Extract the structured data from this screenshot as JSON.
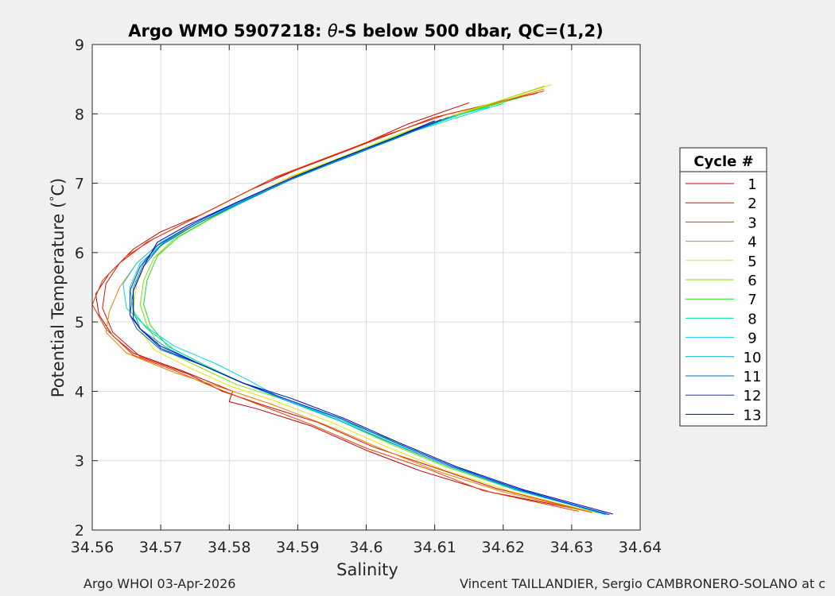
{
  "chart_data": {
    "type": "line",
    "title": "Argo WMO 5907218: θ-S below 500 dbar,  QC=(1,2)",
    "title_parts": [
      "Argo WMO 5907218: ",
      "θ",
      "-S below 500 dbar,  QC=(1,2)"
    ],
    "xlabel": "Salinity",
    "ylabel": "Potential Temperature (°C)",
    "ylabel_parts": [
      "Potential Temperature (",
      "°",
      "C)"
    ],
    "xlim": [
      34.56,
      34.64
    ],
    "ylim": [
      2,
      9
    ],
    "xticks": [
      34.56,
      34.57,
      34.58,
      34.59,
      34.6,
      34.61,
      34.62,
      34.63,
      34.64
    ],
    "xtick_labels": [
      "34.56",
      "34.57",
      "34.58",
      "34.59",
      "34.6",
      "34.61",
      "34.62",
      "34.63",
      "34.64"
    ],
    "yticks": [
      2,
      3,
      4,
      5,
      6,
      7,
      8,
      9
    ],
    "ytick_labels": [
      "2",
      "3",
      "4",
      "5",
      "6",
      "7",
      "8",
      "9"
    ],
    "grid": true,
    "legend": {
      "title": "Cycle #",
      "placement": "outside-right"
    },
    "series": [
      {
        "name": "1",
        "color": "#c00000",
        "values": [
          [
            34.633,
            2.26
          ],
          [
            34.618,
            2.55
          ],
          [
            34.608,
            2.85
          ],
          [
            34.6,
            3.15
          ],
          [
            34.592,
            3.5
          ],
          [
            34.584,
            3.75
          ],
          [
            34.58,
            3.85
          ],
          [
            34.5805,
            4.0
          ],
          [
            34.573,
            4.3
          ],
          [
            34.566,
            4.55
          ],
          [
            34.563,
            4.8
          ],
          [
            34.561,
            5.1
          ],
          [
            34.5605,
            5.4
          ],
          [
            34.5625,
            5.7
          ],
          [
            34.566,
            6.05
          ],
          [
            34.57,
            6.3
          ],
          [
            34.576,
            6.55
          ],
          [
            34.583,
            6.9
          ],
          [
            34.59,
            7.2
          ],
          [
            34.598,
            7.5
          ],
          [
            34.606,
            7.85
          ],
          [
            34.615,
            8.16
          ]
        ]
      },
      {
        "name": "2",
        "color": "#d61000",
        "values": [
          [
            34.632,
            2.28
          ],
          [
            34.619,
            2.6
          ],
          [
            34.61,
            2.9
          ],
          [
            34.601,
            3.2
          ],
          [
            34.593,
            3.55
          ],
          [
            34.585,
            3.8
          ],
          [
            34.579,
            4.0
          ],
          [
            34.574,
            4.25
          ],
          [
            34.567,
            4.5
          ],
          [
            34.563,
            4.85
          ],
          [
            34.5615,
            5.2
          ],
          [
            34.562,
            5.55
          ],
          [
            34.564,
            5.85
          ],
          [
            34.568,
            6.15
          ],
          [
            34.573,
            6.4
          ],
          [
            34.579,
            6.7
          ],
          [
            34.586,
            7.05
          ],
          [
            34.594,
            7.35
          ],
          [
            34.602,
            7.65
          ],
          [
            34.61,
            7.95
          ],
          [
            34.625,
            8.3
          ]
        ]
      },
      {
        "name": "3",
        "color": "#e63c00",
        "values": [
          [
            34.631,
            2.27
          ],
          [
            34.617,
            2.57
          ],
          [
            34.609,
            2.88
          ],
          [
            34.6,
            3.18
          ],
          [
            34.592,
            3.52
          ],
          [
            34.584,
            3.82
          ],
          [
            34.578,
            4.05
          ],
          [
            34.572,
            4.3
          ],
          [
            34.566,
            4.52
          ],
          [
            34.562,
            4.9
          ],
          [
            34.56,
            5.25
          ],
          [
            34.5615,
            5.6
          ],
          [
            34.565,
            5.95
          ],
          [
            34.569,
            6.2
          ],
          [
            34.574,
            6.45
          ],
          [
            34.58,
            6.75
          ],
          [
            34.587,
            7.1
          ],
          [
            34.595,
            7.4
          ],
          [
            34.603,
            7.7
          ],
          [
            34.612,
            8.0
          ],
          [
            34.626,
            8.33
          ]
        ]
      },
      {
        "name": "4",
        "color": "#f08000",
        "values": [
          [
            34.633,
            2.25
          ],
          [
            34.62,
            2.55
          ],
          [
            34.61,
            2.86
          ],
          [
            34.602,
            3.18
          ],
          [
            34.594,
            3.52
          ],
          [
            34.586,
            3.82
          ],
          [
            34.579,
            4.05
          ],
          [
            34.572,
            4.27
          ],
          [
            34.565,
            4.55
          ],
          [
            34.562,
            4.85
          ],
          [
            34.5625,
            5.15
          ],
          [
            34.564,
            5.5
          ],
          [
            34.5665,
            5.85
          ],
          [
            34.57,
            6.15
          ],
          [
            34.575,
            6.4
          ],
          [
            34.581,
            6.7
          ],
          [
            34.588,
            7.05
          ],
          [
            34.596,
            7.35
          ],
          [
            34.604,
            7.65
          ],
          [
            34.613,
            7.98
          ],
          [
            34.626,
            8.36
          ]
        ]
      },
      {
        "name": "5",
        "color": "#e6e600",
        "values": [
          [
            34.634,
            2.24
          ],
          [
            34.621,
            2.56
          ],
          [
            34.611,
            2.88
          ],
          [
            34.603,
            3.2
          ],
          [
            34.595,
            3.55
          ],
          [
            34.587,
            3.85
          ],
          [
            34.58,
            4.08
          ],
          [
            34.574,
            4.35
          ],
          [
            34.569,
            4.6
          ],
          [
            34.567,
            4.9
          ],
          [
            34.566,
            5.2
          ],
          [
            34.5665,
            5.55
          ],
          [
            34.568,
            5.9
          ],
          [
            34.571,
            6.18
          ],
          [
            34.576,
            6.45
          ],
          [
            34.582,
            6.75
          ],
          [
            34.589,
            7.1
          ],
          [
            34.597,
            7.4
          ],
          [
            34.605,
            7.72
          ],
          [
            34.614,
            8.02
          ],
          [
            34.627,
            8.42
          ]
        ]
      },
      {
        "name": "6",
        "color": "#80e000",
        "values": [
          [
            34.635,
            2.23
          ],
          [
            34.622,
            2.57
          ],
          [
            34.612,
            2.9
          ],
          [
            34.604,
            3.22
          ],
          [
            34.596,
            3.58
          ],
          [
            34.588,
            3.88
          ],
          [
            34.581,
            4.1
          ],
          [
            34.575,
            4.38
          ],
          [
            34.57,
            4.62
          ],
          [
            34.568,
            4.95
          ],
          [
            34.567,
            5.25
          ],
          [
            34.5675,
            5.6
          ],
          [
            34.569,
            5.92
          ],
          [
            34.572,
            6.2
          ],
          [
            34.577,
            6.48
          ],
          [
            34.583,
            6.78
          ],
          [
            34.59,
            7.12
          ],
          [
            34.598,
            7.42
          ],
          [
            34.606,
            7.74
          ],
          [
            34.615,
            8.04
          ],
          [
            34.626,
            8.4
          ]
        ]
      },
      {
        "name": "7",
        "color": "#20e020",
        "values": [
          [
            34.635,
            2.24
          ],
          [
            34.622,
            2.58
          ],
          [
            34.613,
            2.92
          ],
          [
            34.605,
            3.25
          ],
          [
            34.596,
            3.6
          ],
          [
            34.588,
            3.9
          ],
          [
            34.582,
            4.12
          ],
          [
            34.576,
            4.4
          ],
          [
            34.571,
            4.65
          ],
          [
            34.5685,
            4.95
          ],
          [
            34.5675,
            5.25
          ],
          [
            34.568,
            5.6
          ],
          [
            34.5695,
            5.95
          ],
          [
            34.5725,
            6.22
          ],
          [
            34.5775,
            6.5
          ],
          [
            34.5835,
            6.8
          ],
          [
            34.5905,
            7.14
          ],
          [
            34.5985,
            7.45
          ],
          [
            34.6065,
            7.76
          ],
          [
            34.616,
            8.06
          ],
          [
            34.623,
            8.25
          ]
        ]
      },
      {
        "name": "8",
        "color": "#00e0a0",
        "values": [
          [
            34.635,
            2.23
          ],
          [
            34.622,
            2.57
          ],
          [
            34.612,
            2.92
          ],
          [
            34.604,
            3.24
          ],
          [
            34.596,
            3.58
          ],
          [
            34.588,
            3.88
          ],
          [
            34.582,
            4.12
          ],
          [
            34.577,
            4.35
          ],
          [
            34.572,
            4.6
          ],
          [
            34.568,
            4.9
          ],
          [
            34.566,
            5.15
          ],
          [
            34.5655,
            5.5
          ],
          [
            34.567,
            5.85
          ],
          [
            34.5705,
            6.15
          ],
          [
            34.576,
            6.45
          ],
          [
            34.5825,
            6.75
          ],
          [
            34.59,
            7.1
          ],
          [
            34.598,
            7.4
          ],
          [
            34.606,
            7.72
          ],
          [
            34.615,
            8.0
          ],
          [
            34.62,
            8.15
          ]
        ]
      },
      {
        "name": "9",
        "color": "#00d8e8",
        "values": [
          [
            34.635,
            2.22
          ],
          [
            34.622,
            2.58
          ],
          [
            34.612,
            2.92
          ],
          [
            34.604,
            3.25
          ],
          [
            34.596,
            3.6
          ],
          [
            34.588,
            3.88
          ],
          [
            34.583,
            4.15
          ],
          [
            34.578,
            4.4
          ],
          [
            34.572,
            4.65
          ],
          [
            34.568,
            4.92
          ],
          [
            34.565,
            5.2
          ],
          [
            34.5645,
            5.55
          ],
          [
            34.5665,
            5.85
          ],
          [
            34.57,
            6.15
          ],
          [
            34.5755,
            6.45
          ],
          [
            34.582,
            6.75
          ],
          [
            34.5895,
            7.08
          ],
          [
            34.5975,
            7.4
          ],
          [
            34.6055,
            7.7
          ],
          [
            34.614,
            8.0
          ],
          [
            34.618,
            8.1
          ]
        ]
      },
      {
        "name": "10",
        "color": "#00a8d8",
        "values": [
          [
            34.635,
            2.23
          ],
          [
            34.622,
            2.58
          ],
          [
            34.612,
            2.92
          ],
          [
            34.604,
            3.24
          ],
          [
            34.596,
            3.58
          ],
          [
            34.588,
            3.88
          ],
          [
            34.582,
            4.12
          ],
          [
            34.576,
            4.38
          ],
          [
            34.571,
            4.62
          ],
          [
            34.567,
            4.9
          ],
          [
            34.566,
            5.15
          ],
          [
            34.566,
            5.5
          ],
          [
            34.5675,
            5.85
          ],
          [
            34.5705,
            6.15
          ],
          [
            34.576,
            6.45
          ],
          [
            34.5825,
            6.75
          ],
          [
            34.59,
            7.1
          ],
          [
            34.5975,
            7.38
          ],
          [
            34.605,
            7.68
          ],
          [
            34.613,
            7.98
          ]
        ]
      },
      {
        "name": "11",
        "color": "#0070c8",
        "values": [
          [
            34.6355,
            2.22
          ],
          [
            34.6225,
            2.58
          ],
          [
            34.6125,
            2.92
          ],
          [
            34.6045,
            3.25
          ],
          [
            34.5965,
            3.6
          ],
          [
            34.5885,
            3.88
          ],
          [
            34.582,
            4.12
          ],
          [
            34.576,
            4.38
          ],
          [
            34.57,
            4.6
          ],
          [
            34.5665,
            4.9
          ],
          [
            34.5655,
            5.1
          ],
          [
            34.566,
            5.45
          ],
          [
            34.5675,
            5.8
          ],
          [
            34.57,
            6.1
          ],
          [
            34.575,
            6.4
          ],
          [
            34.5815,
            6.72
          ],
          [
            34.589,
            7.05
          ],
          [
            34.5965,
            7.35
          ],
          [
            34.6045,
            7.65
          ],
          [
            34.612,
            7.95
          ]
        ]
      },
      {
        "name": "12",
        "color": "#0038d8",
        "values": [
          [
            34.6355,
            2.22
          ],
          [
            34.6225,
            2.58
          ],
          [
            34.6125,
            2.92
          ],
          [
            34.6045,
            3.25
          ],
          [
            34.5965,
            3.6
          ],
          [
            34.5885,
            3.88
          ],
          [
            34.582,
            4.12
          ],
          [
            34.576,
            4.38
          ],
          [
            34.57,
            4.62
          ],
          [
            34.567,
            4.9
          ],
          [
            34.5655,
            5.1
          ],
          [
            34.5655,
            5.45
          ],
          [
            34.567,
            5.8
          ],
          [
            34.5695,
            6.1
          ],
          [
            34.5745,
            6.4
          ],
          [
            34.581,
            6.72
          ],
          [
            34.5885,
            7.05
          ],
          [
            34.596,
            7.35
          ],
          [
            34.604,
            7.65
          ],
          [
            34.611,
            7.92
          ]
        ]
      },
      {
        "name": "13",
        "color": "#0000b8",
        "values": [
          [
            34.636,
            2.23
          ],
          [
            34.623,
            2.58
          ],
          [
            34.613,
            2.92
          ],
          [
            34.605,
            3.25
          ],
          [
            34.597,
            3.6
          ],
          [
            34.589,
            3.9
          ],
          [
            34.582,
            4.12
          ],
          [
            34.576,
            4.38
          ],
          [
            34.57,
            4.65
          ],
          [
            34.567,
            4.9
          ],
          [
            34.566,
            5.05
          ],
          [
            34.566,
            5.45
          ],
          [
            34.5675,
            5.8
          ],
          [
            34.5695,
            6.15
          ],
          [
            34.574,
            6.4
          ],
          [
            34.581,
            6.72
          ],
          [
            34.5885,
            7.05
          ],
          [
            34.596,
            7.35
          ],
          [
            34.604,
            7.65
          ],
          [
            34.61,
            7.9
          ]
        ]
      }
    ]
  },
  "footer": {
    "left": "Argo WHOI 03-Apr-2026",
    "right": "Vincent TAILLANDIER, Sergio CAMBRONERO-SOLANO at c"
  }
}
